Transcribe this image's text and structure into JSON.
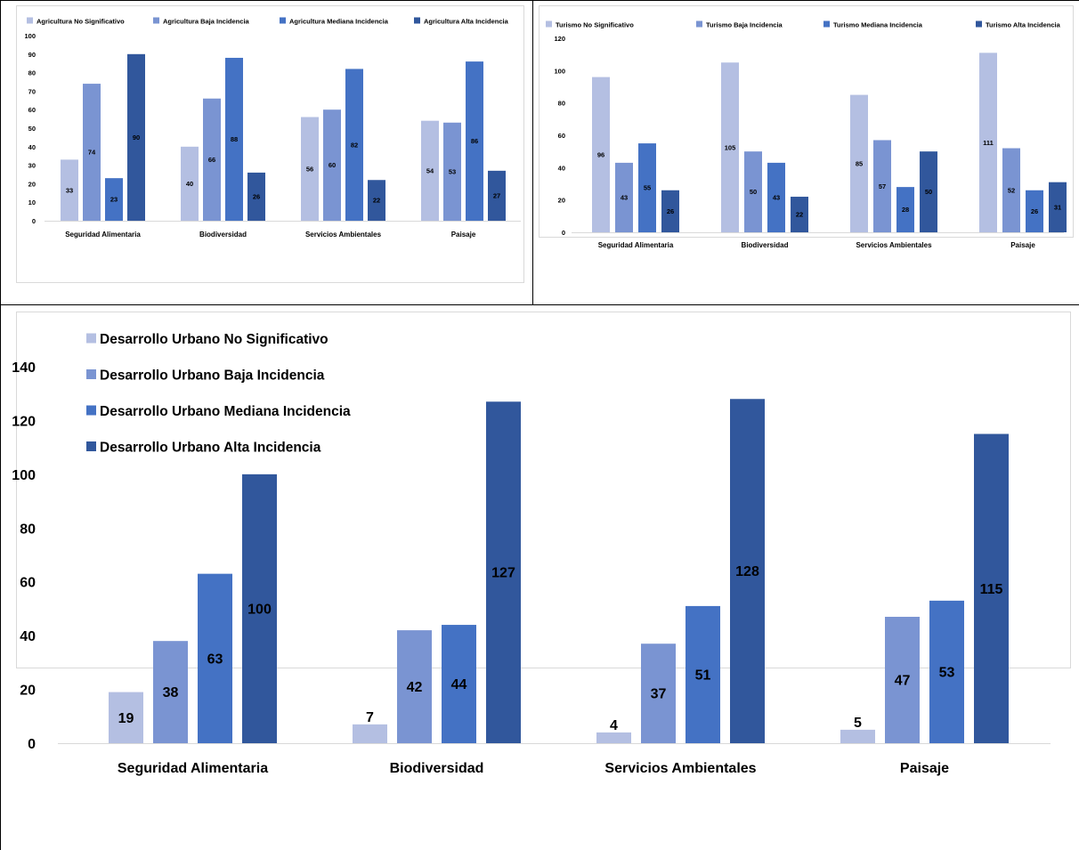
{
  "colors": {
    "no_significativo": "#b4bfe2",
    "baja": "#7a94d2",
    "mediana": "#4472c4",
    "alta": "#31579c"
  },
  "chart_data": [
    {
      "type": "bar",
      "categories": [
        "Seguridad Alimentaria",
        "Biodiversidad",
        "Servicios Ambientales",
        "Paisaje"
      ],
      "series": [
        {
          "name": "Agricultura No Significativo",
          "values": [
            33,
            40,
            56,
            54
          ]
        },
        {
          "name": "Agricultura Baja Incidencia",
          "values": [
            74,
            66,
            60,
            53
          ]
        },
        {
          "name": "Agricultura Mediana Incidencia",
          "values": [
            23,
            88,
            82,
            86
          ]
        },
        {
          "name": "Agricultura Alta Incidencia",
          "values": [
            90,
            26,
            22,
            27
          ]
        }
      ],
      "ylim": [
        0,
        100
      ],
      "yticks": [
        0,
        10,
        20,
        30,
        40,
        50,
        60,
        70,
        80,
        90,
        100
      ],
      "legend": "top",
      "grid": false
    },
    {
      "type": "bar",
      "categories": [
        "Seguridad Alimentaria",
        "Biodiversidad",
        "Servicios Ambientales",
        "Paisaje"
      ],
      "series": [
        {
          "name": "Turismo No Significativo",
          "values": [
            96,
            105,
            85,
            111
          ]
        },
        {
          "name": "Turismo Baja Incidencia",
          "values": [
            43,
            50,
            57,
            52
          ]
        },
        {
          "name": "Turismo Mediana Incidencia",
          "values": [
            55,
            43,
            28,
            26
          ]
        },
        {
          "name": "Turismo Alta Incidencia",
          "values": [
            26,
            22,
            50,
            31
          ]
        }
      ],
      "ylim": [
        0,
        120
      ],
      "yticks": [
        0,
        20,
        40,
        60,
        80,
        100,
        120
      ],
      "legend": "top",
      "grid": false
    },
    {
      "type": "bar",
      "categories": [
        "Seguridad Alimentaria",
        "Biodiversidad",
        "Servicios Ambientales",
        "Paisaje"
      ],
      "series": [
        {
          "name": "Desarrollo Urbano No Significativo",
          "values": [
            19,
            7,
            4,
            5
          ]
        },
        {
          "name": "Desarrollo Urbano Baja Incidencia",
          "values": [
            38,
            42,
            37,
            47
          ]
        },
        {
          "name": "Desarrollo Urbano Mediana Incidencia",
          "values": [
            63,
            44,
            51,
            53
          ]
        },
        {
          "name": "Desarrollo Urbano Alta Incidencia",
          "values": [
            100,
            127,
            128,
            115
          ]
        }
      ],
      "ylim": [
        0,
        140
      ],
      "yticks": [
        0,
        20,
        40,
        60,
        80,
        100,
        120,
        140
      ],
      "legend": "top-left",
      "grid": false
    }
  ]
}
